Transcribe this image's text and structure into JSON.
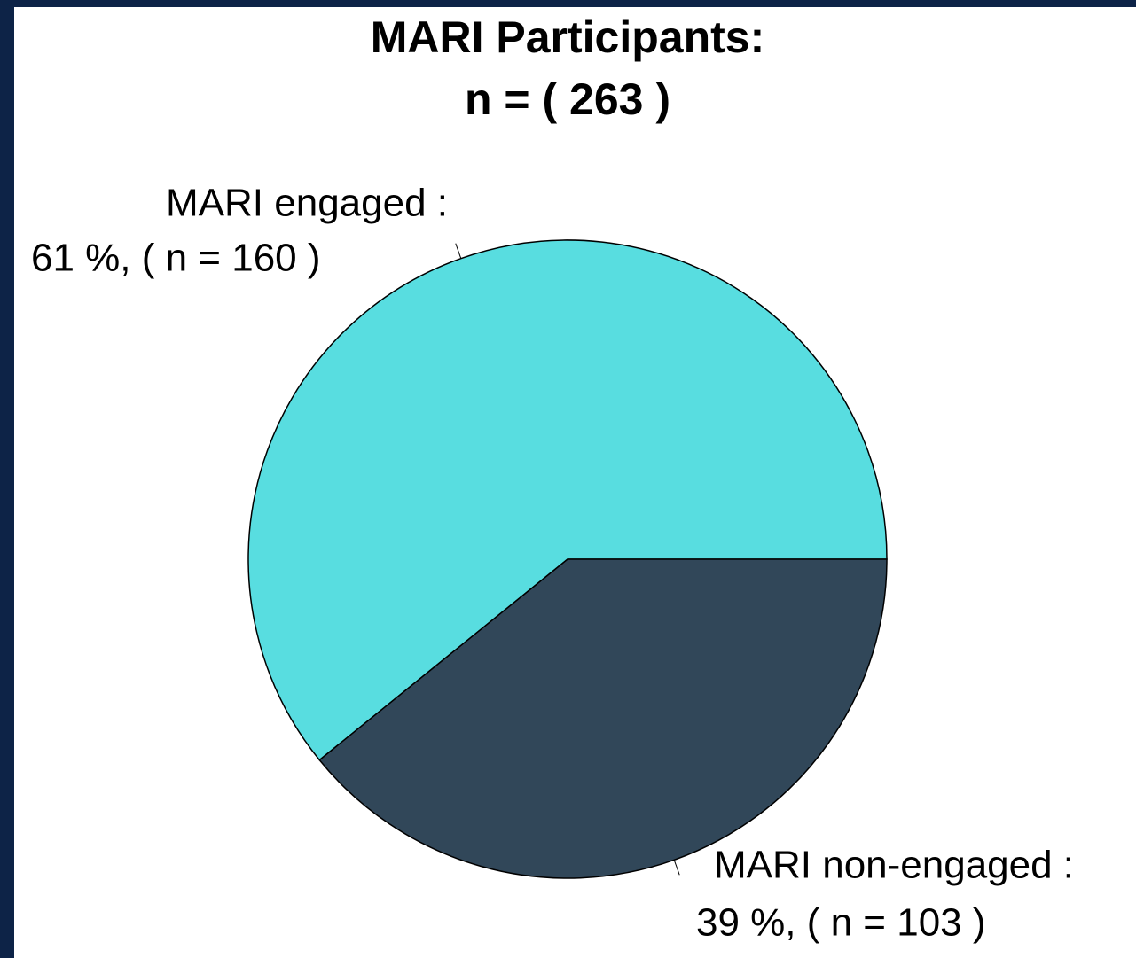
{
  "chart_data": {
    "type": "pie",
    "title": "MARI Participants:",
    "subtitle": "n = ( 263 )",
    "categories": [
      "MARI engaged :",
      "MARI non-engaged :"
    ],
    "values": [
      160,
      103
    ],
    "value_labels": [
      "61 %, ( n = 160 )",
      "39 %, ( n = 103 )"
    ],
    "colors": [
      "#58dde0",
      "#314759"
    ]
  }
}
